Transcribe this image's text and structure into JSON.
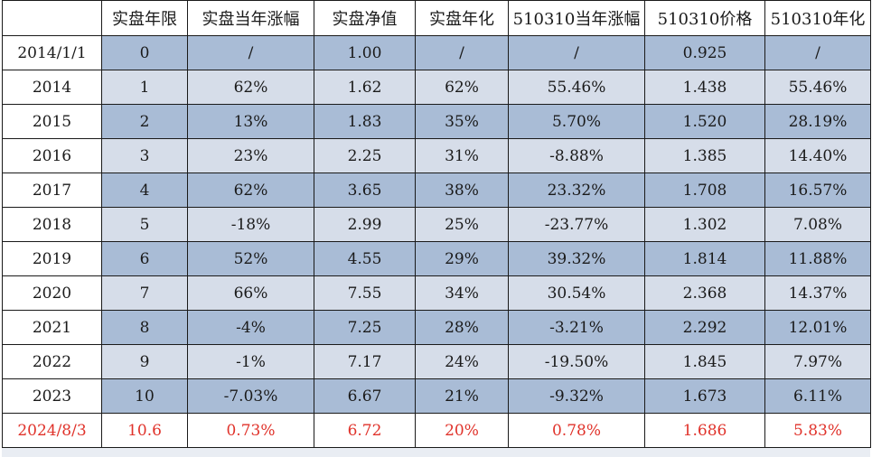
{
  "header": [
    "",
    "实盘年限",
    "实盘当年涨幅",
    "实盘净值",
    "实盘年化",
    "510310当年涨幅",
    "510310价格",
    "510310年化"
  ],
  "rows": [
    [
      "2014/1/1",
      "0",
      "/",
      "1.00",
      "/",
      "/",
      "0.925",
      "/"
    ],
    [
      "2014",
      "1",
      "62%",
      "1.62",
      "62%",
      "55.46%",
      "1.438",
      "55.46%"
    ],
    [
      "2015",
      "2",
      "13%",
      "1.83",
      "35%",
      "5.70%",
      "1.520",
      "28.19%"
    ],
    [
      "2016",
      "3",
      "23%",
      "2.25",
      "31%",
      "-8.88%",
      "1.385",
      "14.40%"
    ],
    [
      "2017",
      "4",
      "62%",
      "3.65",
      "38%",
      "23.32%",
      "1.708",
      "16.57%"
    ],
    [
      "2018",
      "5",
      "-18%",
      "2.99",
      "25%",
      "-23.77%",
      "1.302",
      "7.08%"
    ],
    [
      "2019",
      "6",
      "52%",
      "4.55",
      "29%",
      "39.32%",
      "1.814",
      "11.88%"
    ],
    [
      "2020",
      "7",
      "66%",
      "7.55",
      "34%",
      "30.54%",
      "2.368",
      "14.37%"
    ],
    [
      "2021",
      "8",
      "-4%",
      "7.25",
      "28%",
      "-3.21%",
      "2.292",
      "12.01%"
    ],
    [
      "2022",
      "9",
      "-1%",
      "7.17",
      "24%",
      "-19.50%",
      "1.845",
      "7.97%"
    ],
    [
      "2023",
      "10",
      "-7.03%",
      "6.67",
      "21%",
      "-9.32%",
      "1.673",
      "6.11%"
    ],
    [
      "2024/8/3",
      "10.6",
      "0.73%",
      "6.72",
      "20%",
      "0.78%",
      "1.686",
      "5.83%"
    ]
  ],
  "colors": {
    "band_dark": "#a9bcd6",
    "band_light": "#d6dde9",
    "latest_text": "#e0322a"
  }
}
